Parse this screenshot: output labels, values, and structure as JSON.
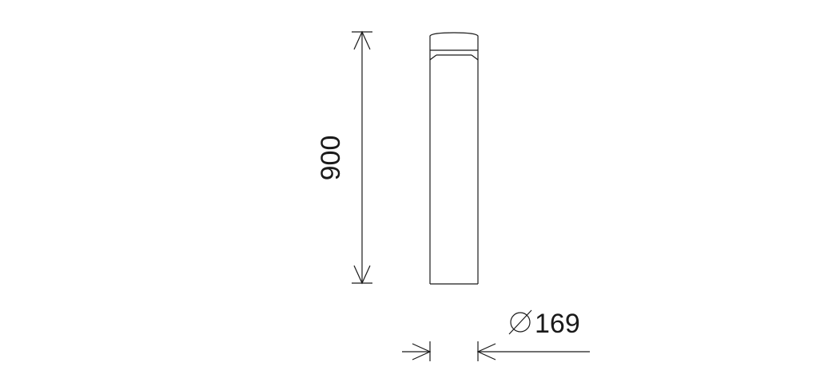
{
  "dimensions": {
    "height_label": "900",
    "diameter_symbol": "∅",
    "diameter_label": "169"
  },
  "colors": {
    "line": "#1a1a1a",
    "background": "#ffffff"
  }
}
